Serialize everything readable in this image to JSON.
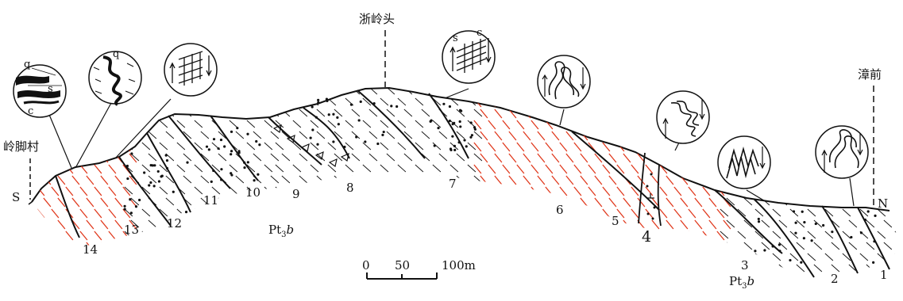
{
  "places": {
    "s_label": "S",
    "n_label": "N",
    "west_village": "岭脚村",
    "summit": "浙岭头",
    "east_village": "漳前"
  },
  "layers": [
    "1",
    "2",
    "3",
    "4",
    "5",
    "6",
    "7",
    "8",
    "9",
    "10",
    "11",
    "12",
    "13",
    "14"
  ],
  "formation": "Pt3b",
  "formation_base": "Pt",
  "formation_sub": "3",
  "formation_italic": "b",
  "scale_bar": {
    "ticks": [
      "0",
      "50",
      "100m"
    ]
  },
  "inset_labels": {
    "q": "q",
    "s": "s",
    "c": "c"
  },
  "colors": {
    "ink": "#111111",
    "red_cleavage": "#e0381c"
  }
}
